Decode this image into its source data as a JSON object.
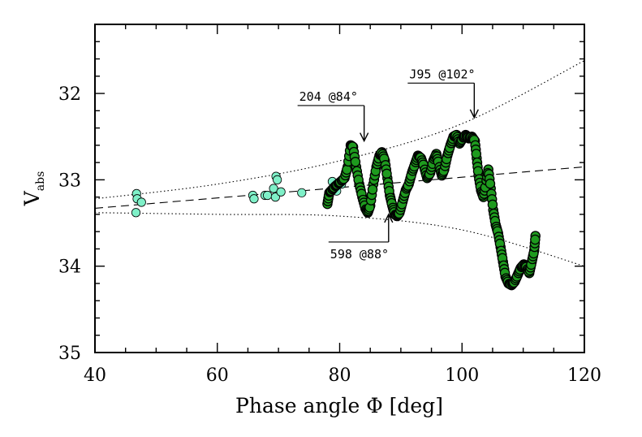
{
  "chart_data": {
    "type": "scatter",
    "title": "",
    "xlabel": "Phase angle Φ  [deg]",
    "ylabel_main": "V",
    "ylabel_sub": "abs",
    "xlim": [
      40,
      120
    ],
    "ylim": [
      35,
      31.2
    ],
    "y_inverted": true,
    "grid": false,
    "legend": "none",
    "x_ticks": [
      "40",
      "60",
      "80",
      "100",
      "120"
    ],
    "y_ticks": [
      "32",
      "33",
      "34",
      "35"
    ],
    "series": [
      {
        "marker": "circle",
        "color": "#7ff0c8",
        "points": [
          [
            46.8,
            33.16
          ],
          [
            46.9,
            33.22
          ],
          [
            46.7,
            33.38
          ],
          [
            47.6,
            33.26
          ],
          [
            65.8,
            33.18
          ],
          [
            66.0,
            33.22
          ],
          [
            67.8,
            33.18
          ],
          [
            68.2,
            33.18
          ],
          [
            69.2,
            33.1
          ],
          [
            69.6,
            32.96
          ],
          [
            69.8,
            33.0
          ],
          [
            69.5,
            33.2
          ],
          [
            70.4,
            33.14
          ],
          [
            73.8,
            33.15
          ],
          [
            78.8,
            33.02
          ],
          [
            79.5,
            33.13
          ],
          [
            80.3,
            33.05
          ]
        ]
      },
      {
        "marker": "circle",
        "color": "#1e9a1e",
        "points": [
          [
            78.0,
            33.28
          ],
          [
            78.3,
            33.15
          ],
          [
            78.7,
            33.12
          ],
          [
            79.2,
            33.08
          ],
          [
            79.7,
            33.05
          ],
          [
            80.2,
            33.02
          ],
          [
            80.8,
            32.98
          ],
          [
            81.3,
            32.85
          ],
          [
            81.8,
            32.6
          ],
          [
            82.2,
            32.62
          ],
          [
            82.7,
            32.85
          ],
          [
            83.2,
            33.05
          ],
          [
            83.7,
            33.2
          ],
          [
            84.2,
            33.33
          ],
          [
            84.6,
            33.38
          ],
          [
            85.0,
            33.3
          ],
          [
            85.5,
            33.05
          ],
          [
            86.0,
            32.85
          ],
          [
            86.5,
            32.72
          ],
          [
            86.9,
            32.68
          ],
          [
            87.4,
            32.78
          ],
          [
            87.8,
            32.98
          ],
          [
            88.2,
            33.18
          ],
          [
            88.6,
            33.3
          ],
          [
            89.0,
            33.4
          ],
          [
            89.4,
            33.42
          ],
          [
            89.8,
            33.38
          ],
          [
            90.3,
            33.25
          ],
          [
            90.8,
            33.12
          ],
          [
            91.3,
            33.05
          ],
          [
            91.8,
            32.92
          ],
          [
            92.3,
            32.82
          ],
          [
            92.8,
            32.72
          ],
          [
            93.3,
            32.75
          ],
          [
            93.8,
            32.85
          ],
          [
            94.3,
            32.98
          ],
          [
            94.8,
            32.92
          ],
          [
            95.3,
            32.78
          ],
          [
            95.8,
            32.7
          ],
          [
            96.2,
            32.82
          ],
          [
            96.7,
            32.95
          ],
          [
            97.1,
            32.88
          ],
          [
            97.6,
            32.72
          ],
          [
            98.1,
            32.6
          ],
          [
            98.6,
            32.5
          ],
          [
            99.1,
            32.48
          ],
          [
            99.6,
            32.58
          ],
          [
            100.1,
            32.52
          ],
          [
            100.6,
            32.48
          ],
          [
            101.1,
            32.52
          ],
          [
            101.6,
            32.5
          ],
          [
            102.1,
            32.55
          ],
          [
            102.4,
            32.75
          ],
          [
            102.7,
            32.95
          ],
          [
            103.1,
            33.12
          ],
          [
            103.5,
            33.2
          ],
          [
            103.9,
            33.05
          ],
          [
            104.3,
            32.88
          ],
          [
            104.7,
            33.1
          ],
          [
            105.1,
            33.35
          ],
          [
            105.5,
            33.52
          ],
          [
            105.9,
            33.62
          ],
          [
            106.3,
            33.78
          ],
          [
            106.7,
            33.95
          ],
          [
            107.1,
            34.12
          ],
          [
            107.6,
            34.2
          ],
          [
            108.1,
            34.22
          ],
          [
            108.6,
            34.18
          ],
          [
            109.1,
            34.1
          ],
          [
            109.6,
            34.02
          ],
          [
            110.1,
            33.98
          ],
          [
            110.6,
            34.02
          ],
          [
            111.0,
            34.08
          ],
          [
            111.4,
            33.95
          ],
          [
            111.8,
            33.82
          ],
          [
            112.0,
            33.65
          ]
        ]
      }
    ],
    "curves": [
      {
        "style": "dashed",
        "points": [
          [
            40,
            33.33
          ],
          [
            120,
            32.85
          ]
        ]
      },
      {
        "style": "dotted",
        "points": [
          [
            40,
            33.22
          ],
          [
            60,
            33.05
          ],
          [
            80,
            32.78
          ],
          [
            100,
            32.35
          ],
          [
            120,
            31.62
          ]
        ]
      },
      {
        "style": "dotted",
        "points": [
          [
            40,
            33.38
          ],
          [
            60,
            33.4
          ],
          [
            80,
            33.42
          ],
          [
            100,
            33.58
          ],
          [
            120,
            34.0
          ]
        ]
      }
    ],
    "annotations": [
      {
        "label": "204 @84°",
        "x": 84,
        "y_from": 32.14,
        "y_to": 32.55,
        "position": "above"
      },
      {
        "label": "J95 @102°",
        "x": 102,
        "y_from": 31.88,
        "y_to": 32.28,
        "position": "above"
      },
      {
        "label": "598 @88°",
        "x": 88,
        "y_from": 33.72,
        "y_to": 33.4,
        "position": "below"
      }
    ]
  }
}
